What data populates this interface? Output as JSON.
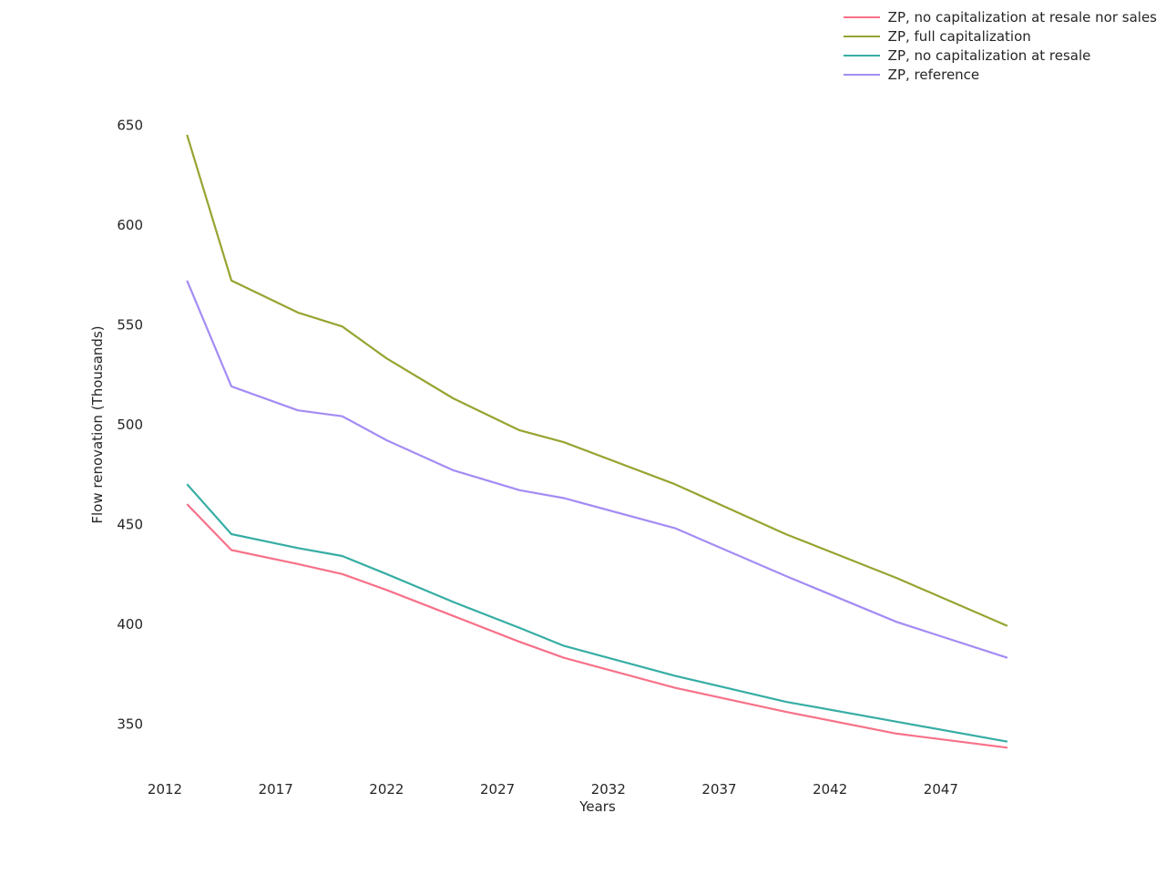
{
  "figure": {
    "background_color": "#ffffff",
    "text_color": "#262626"
  },
  "chart_data": {
    "type": "line",
    "title": "",
    "xlabel": "Years",
    "ylabel": "Flow renovation (Thousands)",
    "x": [
      2013,
      2015,
      2018,
      2020,
      2022,
      2025,
      2028,
      2030,
      2035,
      2040,
      2045,
      2050
    ],
    "series": [
      {
        "name": "ZP, no capitalization at resale nor sales",
        "color": "#f77189",
        "values": [
          460,
          437,
          430,
          425,
          417,
          404,
          391,
          383,
          368,
          356,
          345,
          338
        ]
      },
      {
        "name": "ZP, full capitalization",
        "color": "#97a431",
        "values": [
          645,
          572,
          556,
          549,
          533,
          513,
          497,
          491,
          470,
          445,
          423,
          399
        ]
      },
      {
        "name": "ZP, no capitalization at resale",
        "color": "#36ada4",
        "values": [
          470,
          445,
          438,
          434,
          425,
          411,
          398,
          389,
          374,
          361,
          351,
          341
        ]
      },
      {
        "name": "ZP, reference",
        "color": "#a48cf4",
        "values": [
          572,
          519,
          507,
          504,
          492,
          477,
          467,
          463,
          448,
          424,
          401,
          383
        ]
      }
    ],
    "x_ticks": [
      2012,
      2017,
      2022,
      2027,
      2032,
      2037,
      2042,
      2047
    ],
    "y_ticks": [
      350,
      400,
      450,
      500,
      550,
      600,
      650
    ],
    "xlim": [
      2011.5,
      2051
    ],
    "ylim": [
      333,
      662
    ],
    "grid": false,
    "axis_spines": false,
    "legend_position": "upper right"
  }
}
